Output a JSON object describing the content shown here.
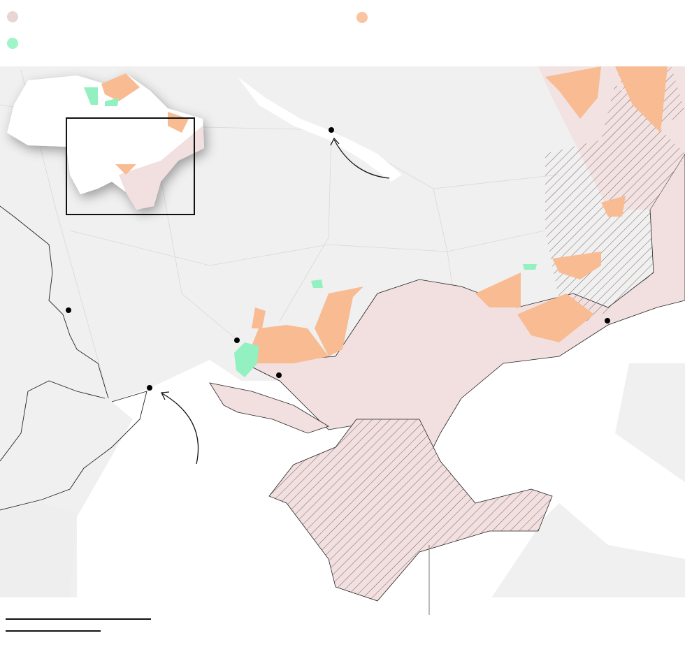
{
  "legend": {
    "items": [
      {
        "icon": "legend-swatch-occupied",
        "color": "#e8d5d5",
        "label": ""
      },
      {
        "icon": "legend-swatch-advance",
        "color": "#f9c49f",
        "label": ""
      },
      {
        "icon": "legend-swatch-counteroffensive",
        "color": "#9ef5c8",
        "label": ""
      }
    ]
  },
  "colors": {
    "land": "#f0f0f0",
    "sea": "#ffffff",
    "occupied": "#f2dfdf",
    "advance": "#f8bb92",
    "counteroffensive": "#93f0c0",
    "hatch": "#6b5555",
    "border": "#222222",
    "city_dot": "#000000"
  },
  "map": {
    "cities": [
      "city-dnipro-river",
      "city-moldova",
      "city-odesa",
      "city-mykolaiv",
      "city-kherson",
      "city-mariupol"
    ]
  }
}
